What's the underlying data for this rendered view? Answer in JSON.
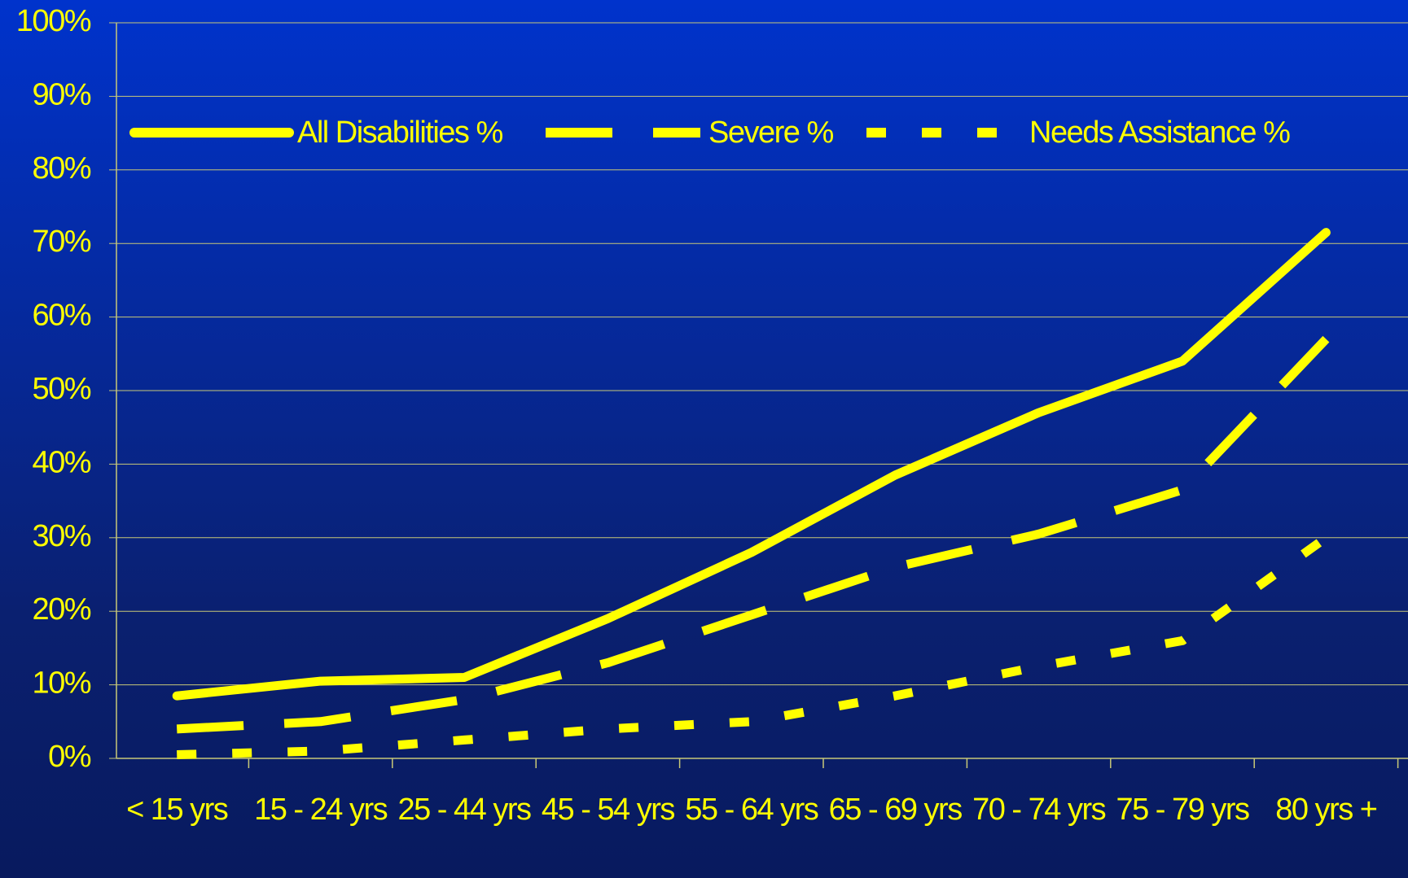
{
  "chart_data": {
    "type": "line",
    "categories": [
      "< 15 yrs",
      "15 - 24 yrs",
      "25 - 44 yrs",
      "45 - 54 yrs",
      "55 - 64 yrs",
      "65 - 69 yrs",
      "70 - 74 yrs",
      "75 - 79 yrs",
      "80 yrs +"
    ],
    "series": [
      {
        "name": "All Disabilities %",
        "color": "#ffff00",
        "dash": "solid",
        "values": [
          8.5,
          10.5,
          11,
          19,
          28,
          38.5,
          47,
          54,
          71.5
        ]
      },
      {
        "name": "Severe %",
        "color": "#ffff00",
        "dash": "long",
        "values": [
          4,
          5,
          8,
          13,
          19.5,
          26,
          30.5,
          36.5,
          57
        ]
      },
      {
        "name": "Needs Assistance %",
        "color": "#ffff00",
        "dash": "short",
        "values": [
          0.5,
          1,
          2.5,
          4,
          5,
          8.5,
          12.5,
          16,
          30
        ]
      }
    ],
    "ylim": [
      0,
      100
    ],
    "yticks": [
      {
        "value": 0,
        "label": "0%"
      },
      {
        "value": 10,
        "label": "10%"
      },
      {
        "value": 20,
        "label": "20%"
      },
      {
        "value": 30,
        "label": "30%"
      },
      {
        "value": 40,
        "label": "40%"
      },
      {
        "value": 50,
        "label": "50%"
      },
      {
        "value": 60,
        "label": "60%"
      },
      {
        "value": 70,
        "label": "70%"
      },
      {
        "value": 80,
        "label": "80%"
      },
      {
        "value": 90,
        "label": "90%"
      },
      {
        "value": 100,
        "label": "100%"
      }
    ],
    "grid": true,
    "legend": "top"
  }
}
